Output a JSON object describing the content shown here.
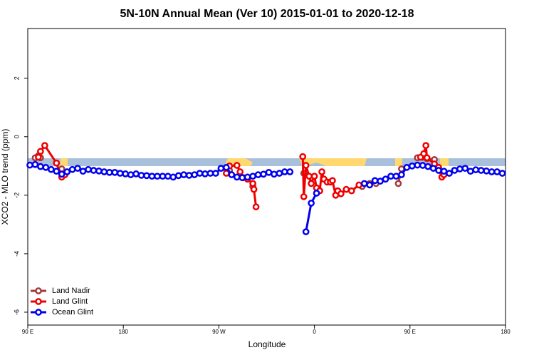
{
  "chart_data": {
    "type": "line",
    "title": "5N-10N Annual Mean (Ver 10)   2015-01-01 to 2020-12-18",
    "x_label": "Longitude",
    "y_label": "XCO2 - MLO trend (ppm)",
    "xlim": [
      90,
      540
    ],
    "ylim": [
      -6.44,
      3.7
    ],
    "xticks": [
      {
        "value": 90,
        "label": "90 E"
      },
      {
        "value": 180,
        "label": "180"
      },
      {
        "value": 270,
        "label": "90 W"
      },
      {
        "value": 360,
        "label": "0"
      },
      {
        "value": 450,
        "label": "90 E"
      },
      {
        "value": 540,
        "label": "180"
      }
    ],
    "yticks": [
      -6,
      -4,
      -2,
      0,
      2
    ],
    "legend": "bottom-left",
    "series": [
      {
        "name": "Land Nadir",
        "color": "#a33a3a",
        "x": [
          97,
          100,
          102,
          null,
          122,
          null,
          277,
          280,
          null,
          302,
          null,
          350,
          null,
          357,
          null,
          405,
          null,
          412,
          418,
          null,
          439,
          442,
          null,
          457,
          462,
          466,
          473,
          477
        ],
        "values": [
          -0.72,
          -0.65,
          -0.72,
          null,
          -1.1,
          null,
          -1.1,
          -1.15,
          null,
          -1.7,
          null,
          -1.25,
          null,
          -1.4,
          null,
          -1.7,
          null,
          -1.6,
          -1.6,
          null,
          -1.6,
          -1.1,
          null,
          -0.72,
          -0.7,
          -0.75,
          -0.78,
          -1.05
        ]
      },
      {
        "name": "Land Glint",
        "color": "#ee0000",
        "x": [
          100,
          102,
          106,
          117,
          122,
          125,
          null,
          277,
          280,
          287,
          290,
          293,
          297,
          302,
          303,
          305,
          null,
          349,
          350,
          352,
          355,
          357,
          360,
          362,
          365,
          367,
          369,
          372,
          375,
          377,
          380,
          382,
          385,
          390,
          395,
          402,
          null,
          460,
          463,
          465,
          466,
          473,
          477,
          480,
          482
        ],
        "values": [
          -0.7,
          -0.5,
          -0.3,
          -0.9,
          -1.38,
          -1.3,
          null,
          -1.25,
          -1.0,
          -0.98,
          -1.2,
          -1.4,
          -1.45,
          -1.6,
          -1.8,
          -2.4,
          null,
          -0.68,
          -2.05,
          -0.98,
          -1.35,
          -1.6,
          -1.35,
          -1.75,
          -1.85,
          -1.2,
          -1.45,
          -1.55,
          -1.55,
          -1.5,
          -2.0,
          -1.85,
          -1.95,
          -1.8,
          -1.85,
          -1.65,
          null,
          -0.7,
          -0.58,
          -0.3,
          -0.72,
          -0.93,
          -1.05,
          -1.38,
          -1.3
        ]
      },
      {
        "name": "Ocean Glint",
        "color": "#0000ee",
        "x": [
          92,
          97,
          102,
          107,
          112,
          117,
          122,
          127,
          132,
          137,
          142,
          147,
          152,
          157,
          162,
          167,
          172,
          177,
          182,
          187,
          192,
          197,
          202,
          207,
          212,
          217,
          222,
          227,
          232,
          237,
          242,
          247,
          252,
          257,
          262,
          267,
          272,
          277,
          282,
          287,
          292,
          297,
          302,
          307,
          312,
          317,
          322,
          327,
          332,
          337,
          null,
          352,
          357,
          362,
          null,
          407,
          412,
          417,
          422,
          427,
          432,
          437,
          442,
          447,
          452,
          457,
          462,
          467,
          472,
          477,
          482,
          487,
          492,
          497,
          502,
          507,
          512,
          517,
          522,
          527,
          532,
          537
        ],
        "values": [
          -0.97,
          -0.95,
          -1.02,
          -1.05,
          -1.12,
          -1.18,
          -1.28,
          -1.2,
          -1.12,
          -1.08,
          -1.18,
          -1.12,
          -1.15,
          -1.17,
          -1.2,
          -1.22,
          -1.22,
          -1.25,
          -1.27,
          -1.3,
          -1.27,
          -1.32,
          -1.33,
          -1.35,
          -1.35,
          -1.35,
          -1.35,
          -1.38,
          -1.33,
          -1.3,
          -1.32,
          -1.3,
          -1.25,
          -1.27,
          -1.25,
          -1.25,
          -1.08,
          -1.05,
          -1.3,
          -1.38,
          -1.4,
          -1.38,
          -1.35,
          -1.3,
          -1.28,
          -1.22,
          -1.28,
          -1.25,
          -1.2,
          -1.2,
          null,
          -3.25,
          -2.27,
          -1.93,
          null,
          -1.6,
          -1.65,
          -1.5,
          -1.52,
          -1.45,
          -1.35,
          -1.35,
          -1.3,
          -1.05,
          -1.0,
          -0.97,
          -0.98,
          -1.02,
          -1.08,
          -1.15,
          -1.18,
          -1.25,
          -1.15,
          -1.1,
          -1.08,
          -1.18,
          -1.13,
          -1.15,
          -1.17,
          -1.2,
          -1.2,
          -1.25
        ]
      }
    ]
  }
}
